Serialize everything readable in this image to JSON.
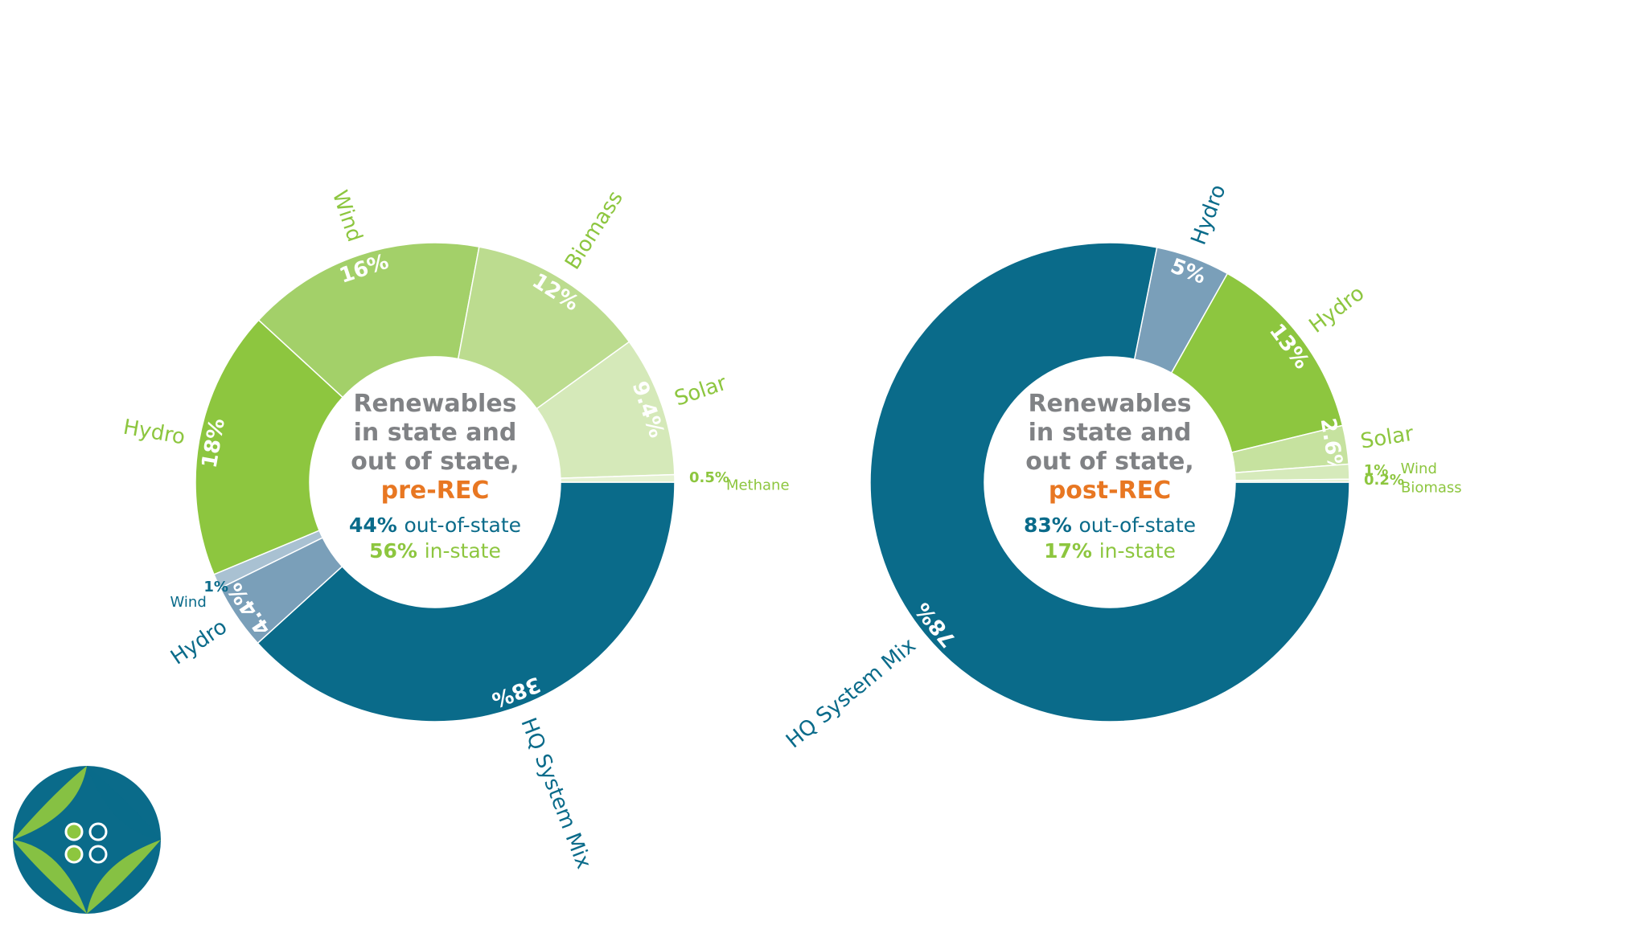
{
  "colors": {
    "out_of_state": "#0a6b8a",
    "in_state": "#8dc63f",
    "accent": "#e87722",
    "center_text": "#808285",
    "white": "#ffffff"
  },
  "chart_data": [
    {
      "type": "pie",
      "title_lines": [
        "Renewables",
        "in state and",
        "out of state,"
      ],
      "highlight": "pre-REC",
      "out_of_state_pct": "44%",
      "out_of_state_label": "out-of-state",
      "in_state_pct": "56%",
      "in_state_label": "in-state",
      "slices": [
        {
          "name": "HQ System Mix",
          "value": 38,
          "value_label": "38%",
          "group": "out-of-state",
          "color": "#0a6b8a"
        },
        {
          "name": "Hydro",
          "value": 4.4,
          "value_label": "4.4%",
          "group": "out-of-state",
          "color": "#7a9fb9"
        },
        {
          "name": "Wind",
          "value": 1,
          "value_label": "1%",
          "group": "out-of-state",
          "color": "#a9c1d2"
        },
        {
          "name": "Hydro",
          "value": 18,
          "value_label": "18%",
          "group": "in-state",
          "color": "#8dc63f"
        },
        {
          "name": "Wind",
          "value": 16,
          "value_label": "16%",
          "group": "in-state",
          "color": "#a3d069"
        },
        {
          "name": "Biomass",
          "value": 12,
          "value_label": "12%",
          "group": "in-state",
          "color": "#bcdc8f"
        },
        {
          "name": "Solar",
          "value": 9.4,
          "value_label": "9.4%",
          "group": "in-state",
          "color": "#d5e9b9"
        },
        {
          "name": "Methane",
          "value": 0.5,
          "value_label": "0.5%",
          "group": "in-state",
          "color": "#e6f2d3"
        }
      ]
    },
    {
      "type": "pie",
      "title_lines": [
        "Renewables",
        "in state and",
        "out of state,"
      ],
      "highlight": "post-REC",
      "out_of_state_pct": "83%",
      "out_of_state_label": "out-of-state",
      "in_state_pct": "17%",
      "in_state_label": "in-state",
      "slices": [
        {
          "name": "HQ System Mix",
          "value": 78,
          "value_label": "78%",
          "group": "out-of-state",
          "color": "#0a6b8a"
        },
        {
          "name": "Hydro",
          "value": 5,
          "value_label": "5%",
          "group": "out-of-state",
          "color": "#7a9fb9"
        },
        {
          "name": "Hydro",
          "value": 13,
          "value_label": "13%",
          "group": "in-state",
          "color": "#8dc63f"
        },
        {
          "name": "Solar",
          "value": 2.6,
          "value_label": "2.6%",
          "group": "in-state",
          "color": "#c6e29f"
        },
        {
          "name": "Wind",
          "value": 1,
          "value_label": "1%",
          "group": "in-state",
          "color": "#d6eabb"
        },
        {
          "name": "Biomass",
          "value": 0.2,
          "value_label": "0.2%",
          "group": "in-state",
          "color": "#e6f2d3"
        }
      ]
    }
  ],
  "logo": {
    "name": "organization-logo"
  }
}
